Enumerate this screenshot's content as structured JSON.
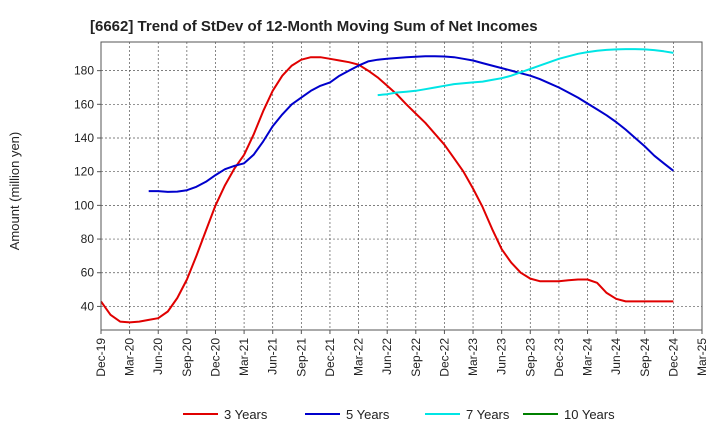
{
  "chart_data": {
    "type": "line",
    "title": "[6662]  Trend of StDev of 12-Month Moving Sum of Net Incomes",
    "ylabel": "Amount (million yen)",
    "xlabel": "",
    "ylim": [
      26,
      197
    ],
    "yticks": [
      40,
      60,
      80,
      100,
      120,
      140,
      160,
      180
    ],
    "xticks": [
      "Dec-19",
      "Mar-20",
      "Jun-20",
      "Sep-20",
      "Dec-20",
      "Mar-21",
      "Jun-21",
      "Sep-21",
      "Dec-21",
      "Mar-22",
      "Jun-22",
      "Sep-22",
      "Dec-22",
      "Mar-23",
      "Jun-23",
      "Sep-23",
      "Dec-23",
      "Mar-24",
      "Jun-24",
      "Sep-24",
      "Dec-24",
      "Mar-25"
    ],
    "grid": true,
    "legend_position": "bottom",
    "series": [
      {
        "name": "3 Years",
        "color": "#e00000",
        "points": [
          [
            "Dec-19",
            43
          ],
          [
            "Jan-20",
            35
          ],
          [
            "Feb-20",
            31
          ],
          [
            "Mar-20",
            30.5
          ],
          [
            "Apr-20",
            31
          ],
          [
            "May-20",
            32
          ],
          [
            "Jun-20",
            33
          ],
          [
            "Jul-20",
            37
          ],
          [
            "Aug-20",
            45
          ],
          [
            "Sep-20",
            56
          ],
          [
            "Oct-20",
            70
          ],
          [
            "Nov-20",
            85
          ],
          [
            "Dec-20",
            100
          ],
          [
            "Jan-21",
            112
          ],
          [
            "Feb-21",
            122
          ],
          [
            "Mar-21",
            130
          ],
          [
            "Apr-21",
            142
          ],
          [
            "May-21",
            156
          ],
          [
            "Jun-21",
            168
          ],
          [
            "Jul-21",
            177
          ],
          [
            "Aug-21",
            183
          ],
          [
            "Sep-21",
            186.5
          ],
          [
            "Oct-21",
            188
          ],
          [
            "Nov-21",
            188
          ],
          [
            "Dec-21",
            187
          ],
          [
            "Jan-22",
            186
          ],
          [
            "Feb-22",
            185
          ],
          [
            "Mar-22",
            183.5
          ],
          [
            "Apr-22",
            180
          ],
          [
            "May-22",
            176
          ],
          [
            "Jun-22",
            171
          ],
          [
            "Jul-22",
            166
          ],
          [
            "Aug-22",
            160
          ],
          [
            "Sep-22",
            154.5
          ],
          [
            "Oct-22",
            149
          ],
          [
            "Nov-22",
            142.5
          ],
          [
            "Dec-22",
            136
          ],
          [
            "Jan-23",
            128
          ],
          [
            "Feb-23",
            120
          ],
          [
            "Mar-23",
            110
          ],
          [
            "Apr-23",
            99
          ],
          [
            "May-23",
            86
          ],
          [
            "Jun-23",
            74
          ],
          [
            "Jul-23",
            66
          ],
          [
            "Aug-23",
            60
          ],
          [
            "Sep-23",
            56.5
          ],
          [
            "Oct-23",
            55
          ],
          [
            "Nov-23",
            55
          ],
          [
            "Dec-23",
            55
          ],
          [
            "Jan-24",
            55.5
          ],
          [
            "Feb-24",
            56
          ],
          [
            "Mar-24",
            56
          ],
          [
            "Apr-24",
            54
          ],
          [
            "May-24",
            48
          ],
          [
            "Jun-24",
            44.5
          ],
          [
            "Jul-24",
            43
          ],
          [
            "Aug-24",
            43
          ],
          [
            "Sep-24",
            43
          ],
          [
            "Oct-24",
            43
          ],
          [
            "Nov-24",
            43
          ],
          [
            "Dec-24",
            43
          ]
        ]
      },
      {
        "name": "5 Years",
        "color": "#0000cc",
        "points": [
          [
            "May-20",
            108.5
          ],
          [
            "Jun-20",
            108.5
          ],
          [
            "Jul-20",
            108
          ],
          [
            "Aug-20",
            108.2
          ],
          [
            "Sep-20",
            109
          ],
          [
            "Oct-20",
            111
          ],
          [
            "Nov-20",
            114
          ],
          [
            "Dec-20",
            118
          ],
          [
            "Jan-21",
            121.5
          ],
          [
            "Feb-21",
            123.5
          ],
          [
            "Mar-21",
            125
          ],
          [
            "Apr-21",
            130
          ],
          [
            "May-21",
            138
          ],
          [
            "Jun-21",
            147
          ],
          [
            "Jul-21",
            154
          ],
          [
            "Aug-21",
            160
          ],
          [
            "Sep-21",
            164
          ],
          [
            "Oct-21",
            168
          ],
          [
            "Nov-21",
            171
          ],
          [
            "Dec-21",
            173
          ],
          [
            "Jan-22",
            177
          ],
          [
            "Feb-22",
            180
          ],
          [
            "Mar-22",
            183
          ],
          [
            "Apr-22",
            185.5
          ],
          [
            "May-22",
            186.5
          ],
          [
            "Jun-22",
            187
          ],
          [
            "Jul-22",
            187.5
          ],
          [
            "Aug-22",
            188
          ],
          [
            "Sep-22",
            188.3
          ],
          [
            "Oct-22",
            188.5
          ],
          [
            "Nov-22",
            188.5
          ],
          [
            "Dec-22",
            188.4
          ],
          [
            "Jan-23",
            188
          ],
          [
            "Feb-23",
            187
          ],
          [
            "Mar-23",
            186
          ],
          [
            "Apr-23",
            184.5
          ],
          [
            "May-23",
            183
          ],
          [
            "Jun-23",
            181.5
          ],
          [
            "Jul-23",
            180
          ],
          [
            "Aug-23",
            178.5
          ],
          [
            "Sep-23",
            177
          ],
          [
            "Oct-23",
            175
          ],
          [
            "Nov-23",
            172.5
          ],
          [
            "Dec-23",
            170
          ],
          [
            "Jan-24",
            167
          ],
          [
            "Feb-24",
            164
          ],
          [
            "Mar-24",
            160.5
          ],
          [
            "Apr-24",
            157
          ],
          [
            "May-24",
            153.5
          ],
          [
            "Jun-24",
            149.5
          ],
          [
            "Jul-24",
            145
          ],
          [
            "Aug-24",
            140
          ],
          [
            "Sep-24",
            135
          ],
          [
            "Oct-24",
            129.5
          ],
          [
            "Nov-24",
            125
          ],
          [
            "Dec-24",
            120.5
          ]
        ]
      },
      {
        "name": "7 Years",
        "color": "#00e5e5",
        "points": [
          [
            "May-22",
            165.5
          ],
          [
            "Jun-22",
            166
          ],
          [
            "Jul-22",
            167
          ],
          [
            "Aug-22",
            167.5
          ],
          [
            "Sep-22",
            168
          ],
          [
            "Oct-22",
            169
          ],
          [
            "Nov-22",
            170
          ],
          [
            "Dec-22",
            171
          ],
          [
            "Jan-23",
            172
          ],
          [
            "Feb-23",
            172.5
          ],
          [
            "Mar-23",
            173
          ],
          [
            "Apr-23",
            173.5
          ],
          [
            "May-23",
            174.5
          ],
          [
            "Jun-23",
            175.5
          ],
          [
            "Jul-23",
            177
          ],
          [
            "Aug-23",
            179
          ],
          [
            "Sep-23",
            181
          ],
          [
            "Oct-23",
            183
          ],
          [
            "Nov-23",
            185
          ],
          [
            "Dec-23",
            187
          ],
          [
            "Jan-24",
            188.5
          ],
          [
            "Feb-24",
            190
          ],
          [
            "Mar-24",
            191
          ],
          [
            "Apr-24",
            191.8
          ],
          [
            "May-24",
            192.3
          ],
          [
            "Jun-24",
            192.6
          ],
          [
            "Jul-24",
            192.8
          ],
          [
            "Aug-24",
            192.8
          ],
          [
            "Sep-24",
            192.6
          ],
          [
            "Oct-24",
            192.2
          ],
          [
            "Nov-24",
            191.5
          ],
          [
            "Dec-24",
            190.5
          ]
        ]
      },
      {
        "name": "10 Years",
        "color": "#008000",
        "points": []
      }
    ]
  }
}
